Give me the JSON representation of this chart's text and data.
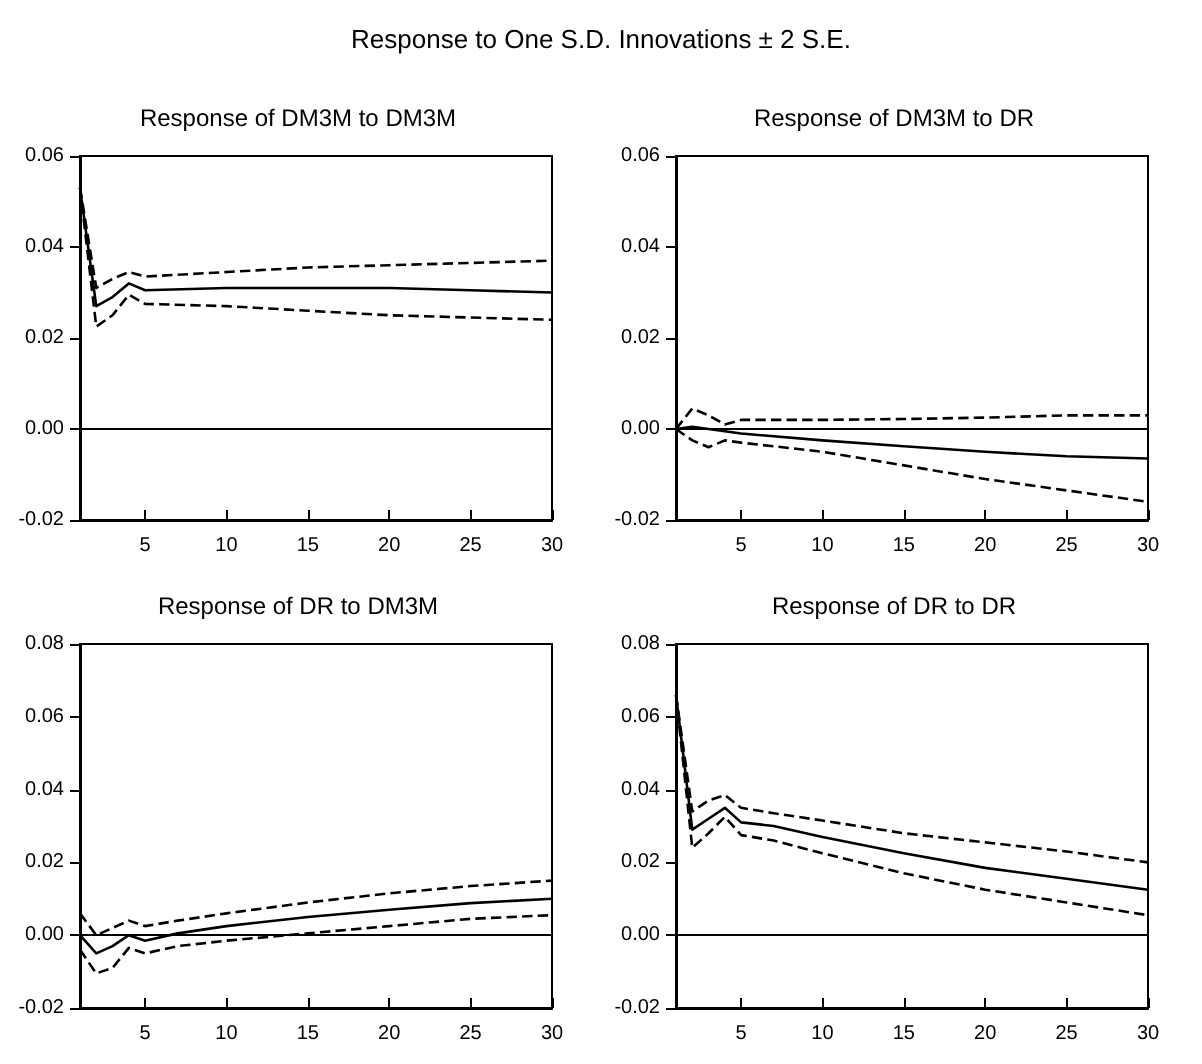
{
  "chart_data": [
    {
      "type": "line",
      "title": "Response of DM3M to DM3M",
      "annotations": [
        "Response to One S.D. Innovations ± 2 S.E."
      ],
      "xlim": [
        1,
        30
      ],
      "xticks": [
        5,
        10,
        15,
        20,
        25,
        30
      ],
      "ylim": [
        -0.02,
        0.06
      ],
      "yticks": [
        {
          "value": -0.02,
          "label": "-0.02"
        },
        {
          "value": 0,
          "label": "0.00"
        },
        {
          "value": 0.02,
          "label": "0.02"
        },
        {
          "value": 0.04,
          "label": "0.04"
        },
        {
          "value": 0.06,
          "label": "0.06"
        }
      ],
      "grid": false,
      "marker": "none",
      "ref_lines": [
        {
          "axis": "y",
          "value": 0,
          "color": "#000000",
          "line_style": "solid"
        }
      ],
      "series": [
        {
          "color": "#000000",
          "line_style": "solid",
          "x": [
            1,
            2,
            3,
            4,
            5,
            10,
            15,
            20,
            25,
            30
          ],
          "values": [
            0.053,
            0.027,
            0.029,
            0.032,
            0.0305,
            0.031,
            0.031,
            0.031,
            0.0305,
            0.03
          ]
        },
        {
          "color": "#000000",
          "line_style": "dashed",
          "x": [
            1,
            2,
            3,
            4,
            5,
            10,
            15,
            20,
            25,
            30
          ],
          "values": [
            0.053,
            0.031,
            0.033,
            0.0345,
            0.0335,
            0.0345,
            0.0355,
            0.036,
            0.0365,
            0.037
          ]
        },
        {
          "color": "#000000",
          "line_style": "dashed",
          "x": [
            1,
            2,
            3,
            4,
            5,
            10,
            15,
            20,
            25,
            30
          ],
          "values": [
            0.053,
            0.0225,
            0.025,
            0.0295,
            0.0275,
            0.027,
            0.026,
            0.025,
            0.0245,
            0.024
          ]
        }
      ]
    },
    {
      "type": "line",
      "title": "Response of DM3M to DR",
      "xlim": [
        1,
        30
      ],
      "xticks": [
        5,
        10,
        15,
        20,
        25,
        30
      ],
      "ylim": [
        -0.02,
        0.06
      ],
      "yticks": [
        {
          "value": -0.02,
          "label": "-0.02"
        },
        {
          "value": 0,
          "label": "0.00"
        },
        {
          "value": 0.02,
          "label": "0.02"
        },
        {
          "value": 0.04,
          "label": "0.04"
        },
        {
          "value": 0.06,
          "label": "0.06"
        }
      ],
      "grid": false,
      "marker": "none",
      "ref_lines": [
        {
          "axis": "y",
          "value": 0,
          "color": "#000000",
          "line_style": "solid"
        }
      ],
      "series": [
        {
          "color": "#000000",
          "line_style": "solid",
          "x": [
            1,
            2,
            3,
            4,
            5,
            10,
            15,
            20,
            25,
            30
          ],
          "values": [
            0.0,
            0.0005,
            0.0,
            -0.0005,
            -0.001,
            -0.0025,
            -0.0038,
            -0.005,
            -0.006,
            -0.0065
          ]
        },
        {
          "color": "#000000",
          "line_style": "dashed",
          "x": [
            1,
            2,
            3,
            4,
            5,
            10,
            15,
            20,
            25,
            30
          ],
          "values": [
            0.0,
            0.0045,
            0.003,
            0.001,
            0.002,
            0.002,
            0.0022,
            0.0025,
            0.003,
            0.003
          ]
        },
        {
          "color": "#000000",
          "line_style": "dashed",
          "x": [
            1,
            2,
            3,
            4,
            5,
            10,
            15,
            20,
            25,
            30
          ],
          "values": [
            0.0,
            -0.0025,
            -0.004,
            -0.0025,
            -0.003,
            -0.005,
            -0.008,
            -0.011,
            -0.0135,
            -0.016
          ]
        }
      ]
    },
    {
      "type": "line",
      "title": "Response of DR to DM3M",
      "xlim": [
        1,
        30
      ],
      "xticks": [
        5,
        10,
        15,
        20,
        25,
        30
      ],
      "ylim": [
        -0.02,
        0.08
      ],
      "yticks": [
        {
          "value": -0.02,
          "label": "-0.02"
        },
        {
          "value": 0,
          "label": "0.00"
        },
        {
          "value": 0.02,
          "label": "0.02"
        },
        {
          "value": 0.04,
          "label": "0.04"
        },
        {
          "value": 0.06,
          "label": "0.06"
        },
        {
          "value": 0.08,
          "label": "0.08"
        }
      ],
      "grid": false,
      "marker": "none",
      "ref_lines": [
        {
          "axis": "y",
          "value": 0,
          "color": "#000000",
          "line_style": "solid"
        }
      ],
      "series": [
        {
          "color": "#000000",
          "line_style": "solid",
          "x": [
            1,
            2,
            3,
            4,
            5,
            7,
            10,
            15,
            20,
            25,
            30
          ],
          "values": [
            0.0,
            -0.005,
            -0.003,
            0.0,
            -0.0015,
            0.0005,
            0.0025,
            0.005,
            0.007,
            0.0088,
            0.01
          ]
        },
        {
          "color": "#000000",
          "line_style": "dashed",
          "x": [
            1,
            2,
            3,
            4,
            5,
            7,
            10,
            15,
            20,
            25,
            30
          ],
          "values": [
            0.006,
            0.0,
            0.002,
            0.004,
            0.0025,
            0.004,
            0.006,
            0.009,
            0.0115,
            0.0135,
            0.015
          ]
        },
        {
          "color": "#000000",
          "line_style": "dashed",
          "x": [
            1,
            2,
            3,
            4,
            5,
            7,
            10,
            15,
            20,
            25,
            30
          ],
          "values": [
            -0.004,
            -0.0105,
            -0.009,
            -0.0035,
            -0.005,
            -0.003,
            -0.0015,
            0.0005,
            0.0025,
            0.0045,
            0.0055
          ]
        }
      ]
    },
    {
      "type": "line",
      "title": "Response of DR to DR",
      "xlim": [
        1,
        30
      ],
      "xticks": [
        5,
        10,
        15,
        20,
        25,
        30
      ],
      "ylim": [
        -0.02,
        0.08
      ],
      "yticks": [
        {
          "value": -0.02,
          "label": "-0.02"
        },
        {
          "value": 0,
          "label": "0.00"
        },
        {
          "value": 0.02,
          "label": "0.02"
        },
        {
          "value": 0.04,
          "label": "0.04"
        },
        {
          "value": 0.06,
          "label": "0.06"
        },
        {
          "value": 0.08,
          "label": "0.08"
        }
      ],
      "grid": false,
      "marker": "none",
      "ref_lines": [
        {
          "axis": "y",
          "value": 0,
          "color": "#000000",
          "line_style": "solid"
        }
      ],
      "series": [
        {
          "color": "#000000",
          "line_style": "solid",
          "x": [
            1,
            2,
            3,
            4,
            5,
            7,
            10,
            15,
            20,
            25,
            30
          ],
          "values": [
            0.066,
            0.029,
            0.032,
            0.035,
            0.031,
            0.03,
            0.027,
            0.0225,
            0.0185,
            0.0155,
            0.0125
          ]
        },
        {
          "color": "#000000",
          "line_style": "dashed",
          "x": [
            1,
            2,
            3,
            4,
            5,
            7,
            10,
            15,
            20,
            25,
            30
          ],
          "values": [
            0.066,
            0.034,
            0.037,
            0.0385,
            0.035,
            0.0335,
            0.0315,
            0.028,
            0.0255,
            0.023,
            0.02
          ]
        },
        {
          "color": "#000000",
          "line_style": "dashed",
          "x": [
            1,
            2,
            3,
            4,
            5,
            7,
            10,
            15,
            20,
            25,
            30
          ],
          "values": [
            0.066,
            0.024,
            0.028,
            0.0325,
            0.0275,
            0.026,
            0.0225,
            0.017,
            0.0125,
            0.009,
            0.0055
          ]
        }
      ]
    }
  ]
}
